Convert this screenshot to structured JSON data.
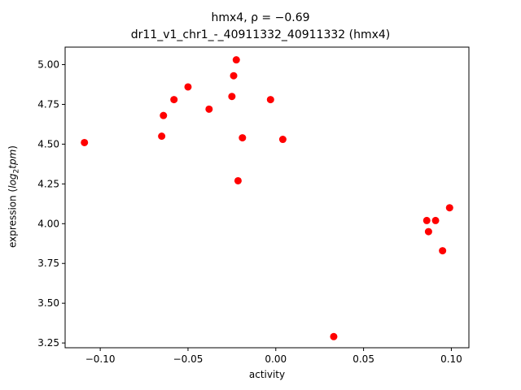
{
  "title_line1": "hmx4, ρ = −0.69",
  "title_line2": "dr11_v1_chr1_-_40911332_40911332 (hmx4)",
  "chart_data": {
    "type": "scatter",
    "title": "hmx4, ρ = −0.69 / dr11_v1_chr1_-_40911332_40911332 (hmx4)",
    "xlabel": "activity",
    "ylabel": "expression (log2tpm)",
    "xlim": [
      -0.12,
      0.11
    ],
    "ylim": [
      3.22,
      5.11
    ],
    "xticks": [
      -0.1,
      -0.05,
      0.0,
      0.05,
      0.1
    ],
    "xtick_labels": [
      "−0.10",
      "−0.05",
      "0.00",
      "0.05",
      "0.10"
    ],
    "yticks": [
      3.25,
      3.5,
      3.75,
      4.0,
      4.25,
      4.5,
      4.75,
      5.0
    ],
    "ytick_labels": [
      "3.25",
      "3.50",
      "3.75",
      "4.00",
      "4.25",
      "4.50",
      "4.75",
      "5.00"
    ],
    "marker_color": "#ff0000",
    "grid": false,
    "points": [
      {
        "x": -0.109,
        "y": 4.51
      },
      {
        "x": -0.065,
        "y": 4.55
      },
      {
        "x": -0.064,
        "y": 4.68
      },
      {
        "x": -0.058,
        "y": 4.78
      },
      {
        "x": -0.05,
        "y": 4.86
      },
      {
        "x": -0.038,
        "y": 4.72
      },
      {
        "x": -0.025,
        "y": 4.8
      },
      {
        "x": -0.024,
        "y": 4.93
      },
      {
        "x": -0.0225,
        "y": 5.03
      },
      {
        "x": -0.0215,
        "y": 4.27
      },
      {
        "x": -0.019,
        "y": 4.54
      },
      {
        "x": -0.003,
        "y": 4.78
      },
      {
        "x": 0.004,
        "y": 4.53
      },
      {
        "x": 0.033,
        "y": 3.29
      },
      {
        "x": 0.086,
        "y": 4.02
      },
      {
        "x": 0.087,
        "y": 3.95
      },
      {
        "x": 0.091,
        "y": 4.02
      },
      {
        "x": 0.095,
        "y": 3.83
      },
      {
        "x": 0.099,
        "y": 4.1
      }
    ]
  }
}
